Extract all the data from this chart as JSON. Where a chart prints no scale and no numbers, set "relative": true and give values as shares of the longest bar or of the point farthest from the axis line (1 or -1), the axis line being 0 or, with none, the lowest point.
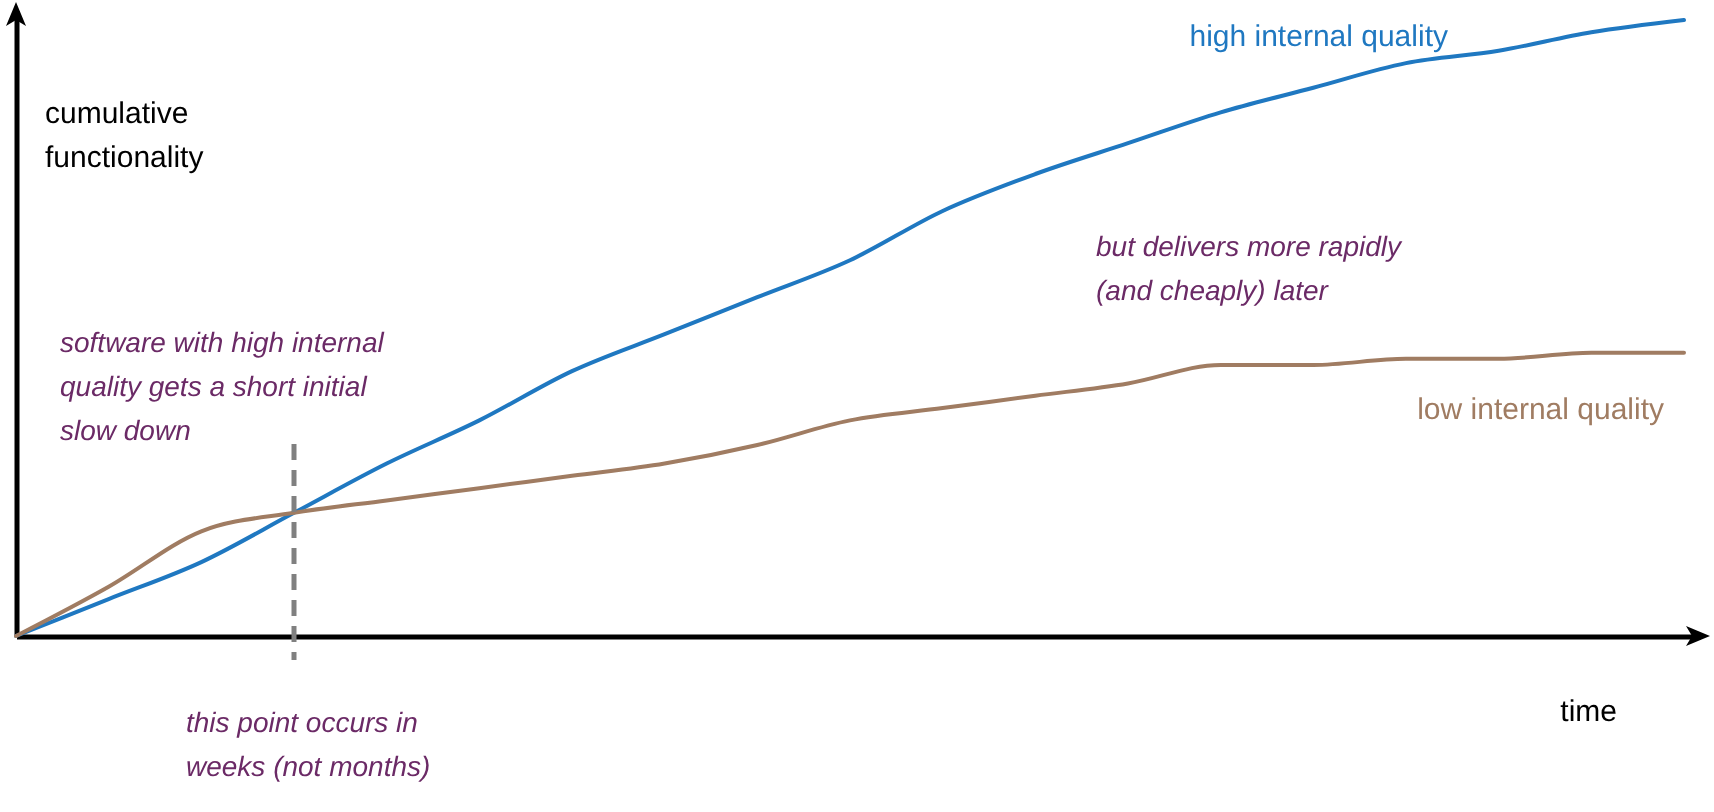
{
  "chart_data": {
    "type": "line",
    "relative": true,
    "xlabel": "time",
    "ylabel": "cumulative functionality",
    "categories": [
      null,
      null,
      null,
      null,
      null,
      null,
      null,
      null,
      null,
      null,
      null,
      null,
      null,
      null,
      null,
      null,
      null,
      null,
      null
    ],
    "series": [
      {
        "name": "high internal quality",
        "color": "#1f78c1",
        "values": [
          0,
          0.06,
          0.12,
          0.2,
          0.28,
          0.35,
          0.43,
          0.49,
          0.55,
          0.61,
          0.69,
          0.75,
          0.8,
          0.85,
          0.89,
          0.93,
          0.95,
          0.98,
          1
        ]
      },
      {
        "name": "low internal quality",
        "color": "#a07c62",
        "values": [
          0,
          0.08,
          0.17,
          0.2,
          0.22,
          0.24,
          0.26,
          0.28,
          0.31,
          0.35,
          0.37,
          0.39,
          0.41,
          0.44,
          0.44,
          0.45,
          0.45,
          0.46,
          0.46
        ]
      }
    ],
    "annotations": [
      "software with high internal quality gets a short initial slow down",
      "but delivers more rapidly (and cheaply) later",
      "this point occurs in weeks (not months)"
    ],
    "marker": "none",
    "line_style": "solid",
    "grid": false
  }
}
